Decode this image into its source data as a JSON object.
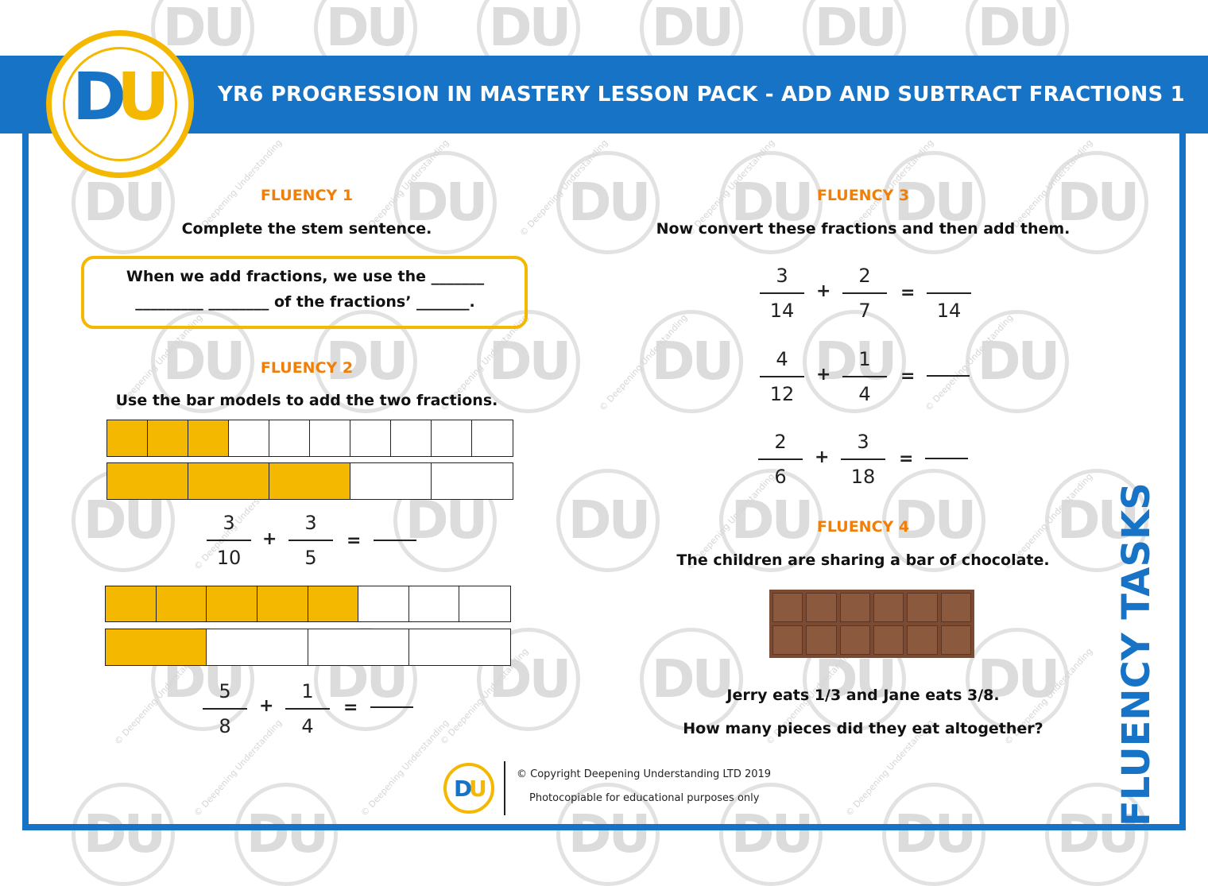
{
  "header": {
    "title": "YR6 PROGRESSION IN MASTERY LESSON PACK - ADD AND SUBTRACT FRACTIONS 1"
  },
  "logo": {
    "d": "D",
    "u": "U"
  },
  "watermark": {
    "mark": "DU",
    "text": "© Deepening Understanding"
  },
  "fluency1": {
    "heading": "FLUENCY 1",
    "instruction": "Complete the stem sentence.",
    "stem_line1": "When we add fractions, we use the _______",
    "stem_line2": "_________ ________ of the fractions’ _______."
  },
  "fluency2": {
    "heading": "FLUENCY 2",
    "instruction": "Use the bar models to add the two fractions.",
    "q1": {
      "a_num": "3",
      "a_den": "10",
      "b_num": "3",
      "b_den": "5",
      "op": "+",
      "eq": "="
    },
    "q2": {
      "a_num": "5",
      "a_den": "8",
      "b_num": "1",
      "b_den": "4",
      "op": "+",
      "eq": "="
    }
  },
  "fluency3": {
    "heading": "FLUENCY 3",
    "instruction": "Now convert these fractions and then add them.",
    "q1": {
      "a_num": "3",
      "a_den": "14",
      "b_num": "2",
      "b_den": "7",
      "r_num": "",
      "r_den": "14",
      "op": "+",
      "eq": "="
    },
    "q2": {
      "a_num": "4",
      "a_den": "12",
      "b_num": "1",
      "b_den": "4",
      "op": "+",
      "eq": "="
    },
    "q3": {
      "a_num": "2",
      "a_den": "6",
      "b_num": "3",
      "b_den": "18",
      "op": "+",
      "eq": "="
    }
  },
  "fluency4": {
    "heading": "FLUENCY 4",
    "instruction": "The children are sharing a bar of chocolate.",
    "line1": "Jerry eats 1/3 and Jane eats 3/8.",
    "line2": "How many pieces did they eat altogether?"
  },
  "side_label": "FLUENCY TASKS",
  "footer": {
    "copyright": "© Copyright Deepening Understanding LTD 2019",
    "note": "Photocopiable for educational purposes only"
  },
  "colors": {
    "blue": "#1773c5",
    "yellow": "#f5b800",
    "orange": "#f07f0a"
  }
}
